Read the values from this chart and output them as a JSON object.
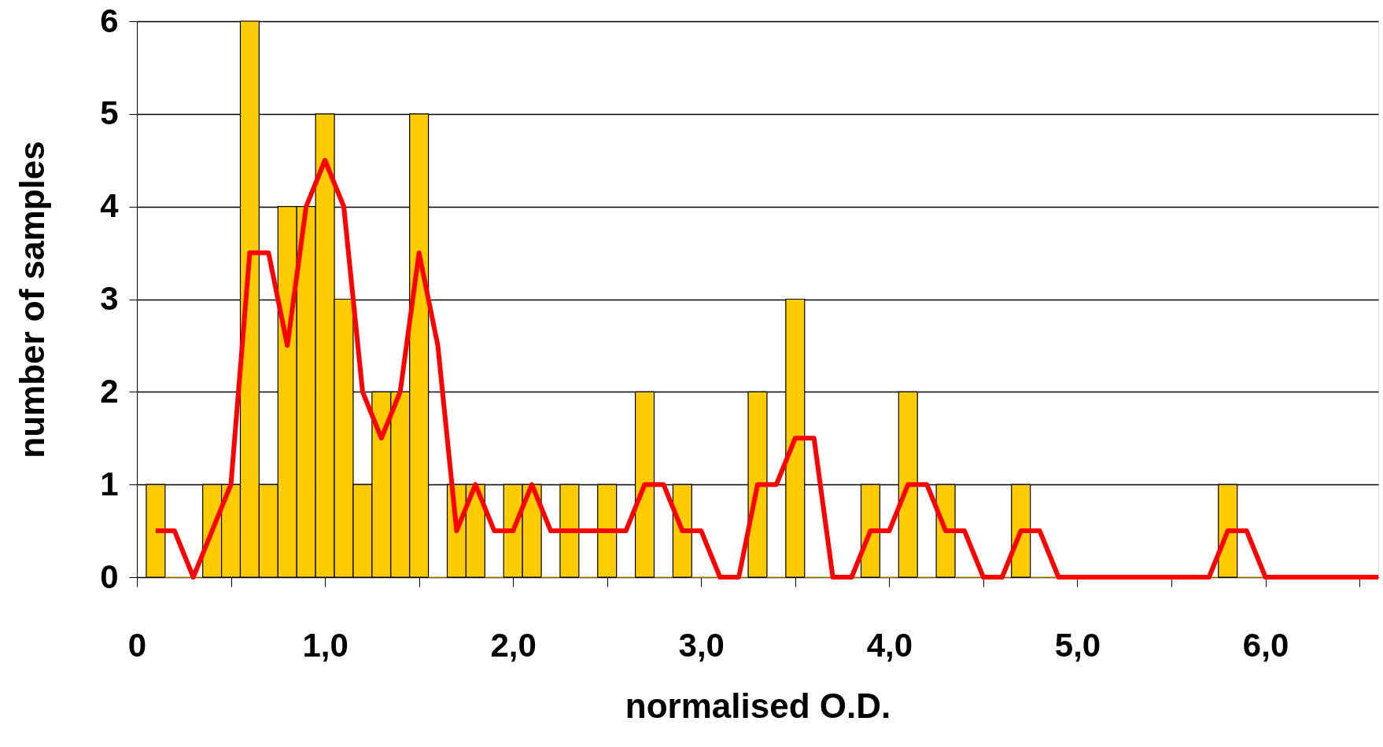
{
  "chart_data": {
    "type": "histogram",
    "xlabel": "normalised O.D.",
    "ylabel": "number of samples",
    "bins": [
      0.05,
      0.15,
      0.25,
      0.35,
      0.45,
      0.55,
      0.65,
      0.75,
      0.85,
      0.95,
      1.05,
      1.15,
      1.25,
      1.35,
      1.45,
      1.55,
      1.65,
      1.75,
      1.85,
      1.95,
      2.05,
      2.15,
      2.25,
      2.35,
      2.45,
      2.55,
      2.65,
      2.75,
      2.85,
      2.95,
      3.05,
      3.15,
      3.25,
      3.35,
      3.45,
      3.55,
      3.65,
      3.75,
      3.85,
      3.95,
      4.05,
      4.15,
      4.25,
      4.35,
      4.45,
      4.55,
      4.65,
      4.75,
      4.85,
      4.95,
      5.05,
      5.15,
      5.25,
      5.35,
      5.45,
      5.55,
      5.65,
      5.75,
      5.85,
      5.95,
      6.05,
      6.15,
      6.25,
      6.35,
      6.45,
      6.55
    ],
    "series": [
      {
        "color": "#ffcc00",
        "values": [
          1,
          0,
          0,
          1,
          1,
          6,
          1,
          4,
          4,
          5,
          3,
          1,
          2,
          2,
          5,
          0,
          1,
          1,
          0,
          1,
          1,
          0,
          1,
          0,
          1,
          0,
          2,
          0,
          1,
          0,
          0,
          0,
          2,
          0,
          3,
          0,
          0,
          0,
          1,
          0,
          2,
          0,
          1,
          0,
          0,
          0,
          1,
          0,
          0,
          0,
          0,
          0,
          0,
          0,
          0,
          0,
          0,
          1,
          0,
          0,
          0,
          0,
          0,
          0,
          0
        ]
      },
      {
        "type": "line",
        "color": "#ff0000",
        "x": [
          0.1,
          0.2,
          0.3,
          0.4,
          0.5,
          0.6,
          0.7,
          0.8,
          0.9,
          1.0,
          1.1,
          1.2,
          1.3,
          1.4,
          1.5,
          1.6,
          1.7,
          1.8,
          1.9,
          2.0,
          2.1,
          2.2,
          2.3,
          2.4,
          2.5,
          2.6,
          2.7,
          2.8,
          2.9,
          3.0,
          3.1,
          3.2,
          3.3,
          3.4,
          3.5,
          3.6,
          3.7,
          3.8,
          3.9,
          4.0,
          4.1,
          4.2,
          4.3,
          4.4,
          4.5,
          4.6,
          4.7,
          4.8,
          4.9,
          5.0,
          5.1,
          5.2,
          5.3,
          5.4,
          5.5,
          5.6,
          5.7,
          5.8,
          5.9,
          6.0,
          6.1,
          6.2,
          6.3,
          6.4,
          6.5,
          6.6
        ],
        "values": [
          0.5,
          0.5,
          0,
          0.5,
          1,
          3.5,
          3.5,
          2.5,
          4,
          4.5,
          4,
          2,
          1.5,
          2,
          3.5,
          2.5,
          0.5,
          1,
          0.5,
          0.5,
          1,
          0.5,
          0.5,
          0.5,
          0.5,
          0.5,
          1,
          1,
          0.5,
          0.5,
          0,
          0,
          1,
          1,
          1.5,
          1.5,
          0,
          0,
          0.5,
          0.5,
          1,
          1,
          0.5,
          0.5,
          0,
          0,
          0.5,
          0.5,
          0,
          0,
          0,
          0,
          0,
          0,
          0,
          0,
          0,
          0.5,
          0.5,
          0,
          0,
          0,
          0,
          0,
          0,
          0
        ]
      }
    ],
    "xlim": [
      0,
      6.6
    ],
    "xticks": [
      {
        "value": 0,
        "label": "0"
      },
      {
        "value": 0.5,
        "label": null
      },
      {
        "value": 1,
        "label": "1,0"
      },
      {
        "value": 1.5,
        "label": null
      },
      {
        "value": 2,
        "label": "2,0"
      },
      {
        "value": 2.5,
        "label": null
      },
      {
        "value": 3,
        "label": "3,0"
      },
      {
        "value": 3.5,
        "label": null
      },
      {
        "value": 4,
        "label": "4,0"
      },
      {
        "value": 4.5,
        "label": null
      },
      {
        "value": 5,
        "label": "5,0"
      },
      {
        "value": 5.5,
        "label": null
      },
      {
        "value": 6,
        "label": "6,0"
      },
      {
        "value": 6.5,
        "label": null
      }
    ],
    "ylim": [
      0,
      6
    ],
    "yticks": [
      0,
      1,
      2,
      3,
      4,
      5,
      6
    ],
    "grid": "y",
    "line_style": "solid",
    "marker": "none"
  }
}
